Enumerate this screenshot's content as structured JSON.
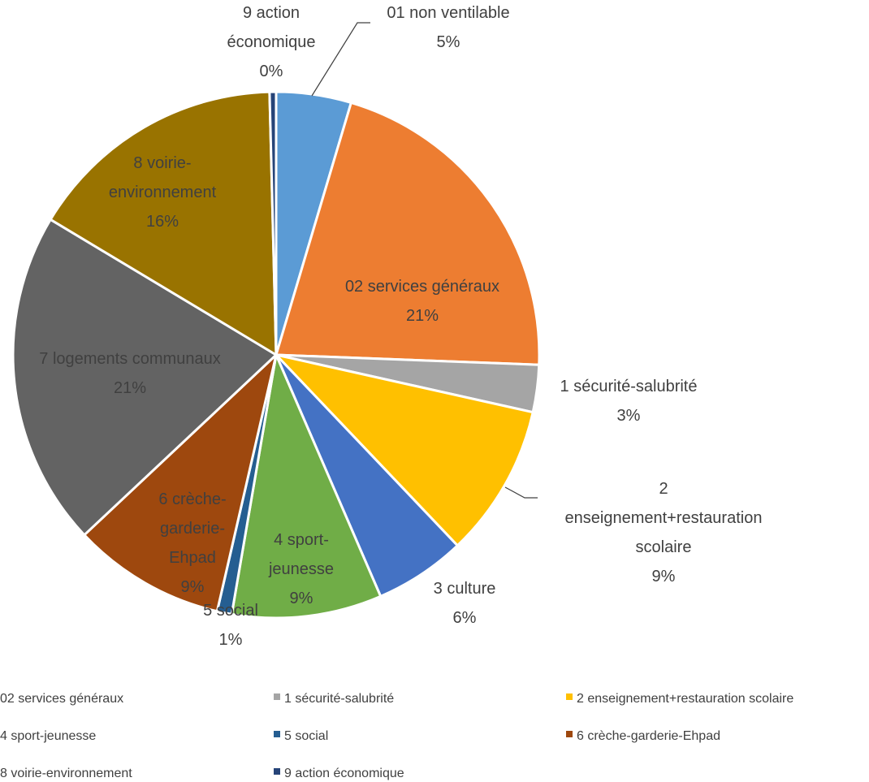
{
  "chart_data": {
    "type": "pie",
    "title": "",
    "slices": [
      {
        "name": "01 non ventilable",
        "label_lines": [
          "01 non ventilable"
        ],
        "percent_label": "5%",
        "value": 4.6,
        "color": "#5B9BD5",
        "label_inside": false
      },
      {
        "name": "02 services généraux",
        "label_lines": [
          "02 services généraux"
        ],
        "percent_label": "21%",
        "value": 21.0,
        "color": "#ED7D31",
        "label_inside": true
      },
      {
        "name": "1 sécurité-salubrité",
        "label_lines": [
          "1 sécurité-salubrité"
        ],
        "percent_label": "3%",
        "value": 2.9,
        "color": "#A5A5A5",
        "label_inside": false
      },
      {
        "name": "2 enseignement+restauration scolaire",
        "label_lines": [
          "2",
          "enseignement+restauration",
          "scolaire"
        ],
        "percent_label": "9%",
        "value": 9.4,
        "color": "#FFC000",
        "label_inside": false
      },
      {
        "name": "3 culture",
        "label_lines": [
          "3 culture"
        ],
        "percent_label": "6%",
        "value": 5.6,
        "color": "#4472C4",
        "label_inside": false
      },
      {
        "name": "4 sport-jeunesse",
        "label_lines": [
          "4 sport-",
          "jeunesse"
        ],
        "percent_label": "9%",
        "value": 9.2,
        "color": "#70AD47",
        "label_inside": true
      },
      {
        "name": "5 social",
        "label_lines": [
          "5 social"
        ],
        "percent_label": "1%",
        "value": 0.9,
        "color": "#255E91",
        "label_inside": false
      },
      {
        "name": "6 crèche-garderie-Ehpad",
        "label_lines": [
          "6 crèche-",
          "garderie-",
          "Ehpad"
        ],
        "percent_label": "9%",
        "value": 9.4,
        "color": "#9E480E",
        "label_inside": true
      },
      {
        "name": "7 logements communaux",
        "label_lines": [
          "7 logements communaux"
        ],
        "percent_label": "21%",
        "value": 20.6,
        "color": "#636363",
        "label_inside": true
      },
      {
        "name": "8 voirie-environnement",
        "label_lines": [
          "8 voirie-",
          "environnement"
        ],
        "percent_label": "16%",
        "value": 16.0,
        "color": "#997300",
        "label_inside": true
      },
      {
        "name": "9 action économique",
        "label_lines": [
          "9 action",
          "économique"
        ],
        "percent_label": "0%",
        "value": 0.4,
        "color": "#264478",
        "label_inside": false
      }
    ],
    "legend": {
      "position": "bottom",
      "entries": [
        "02 services généraux",
        "1 sécurité-salubrité",
        "2 enseignement+restauration scolaire",
        "4 sport-jeunesse",
        "5 social",
        "6 crèche-garderie-Ehpad",
        "8 voirie-environnement",
        "9 action économique"
      ]
    }
  }
}
